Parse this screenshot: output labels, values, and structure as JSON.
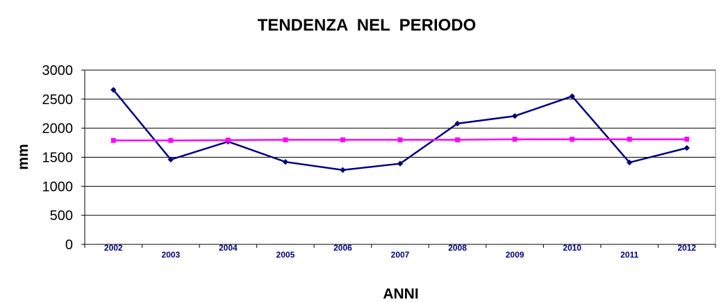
{
  "chart_data": {
    "type": "line",
    "title": "TENDENZA  NEL  PERIODO",
    "xlabel": "ANNI",
    "ylabel": "mm",
    "categories": [
      "2002",
      "2003",
      "2004",
      "2005",
      "2006",
      "2007",
      "2008",
      "2009",
      "2010",
      "2011",
      "2012"
    ],
    "y_ticks": [
      "0",
      "500",
      "1000",
      "1500",
      "2000",
      "2500",
      "3000"
    ],
    "ylim": [
      0,
      3000
    ],
    "grid": true,
    "legend": "none",
    "series": [
      {
        "color": "#000080",
        "marker": "diamond",
        "values": [
          2660,
          1460,
          1770,
          1420,
          1280,
          1390,
          2080,
          2210,
          2550,
          1410,
          1660
        ]
      },
      {
        "color": "#ff00ff",
        "marker": "square",
        "values": [
          1790,
          1790,
          1795,
          1800,
          1800,
          1800,
          1800,
          1810,
          1810,
          1810,
          1810
        ]
      }
    ],
    "colors": {
      "plot_background": "#ffffff",
      "gridline": "#000000",
      "plot_border": "#808080",
      "x_tick_label": "#000080"
    }
  }
}
